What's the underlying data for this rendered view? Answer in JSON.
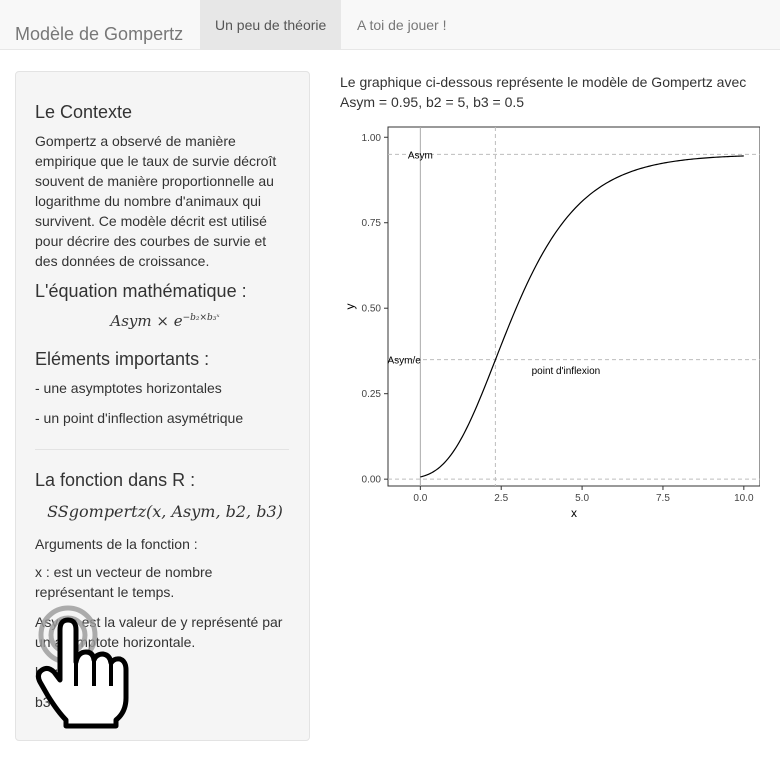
{
  "navbar": {
    "brand": "Modèle de Gompertz",
    "tabs": [
      {
        "label": "Un peu de théorie",
        "active": true
      },
      {
        "label": "A toi de jouer !",
        "active": false
      }
    ]
  },
  "sidebar": {
    "context_title": "Le Contexte",
    "context_lines": [
      "Gompertz a observé de manière",
      "empirique que le taux de survie décroît",
      "souvent de manière proportionnelle au",
      "logarithme du nombre d'animaux qui",
      "survivent. Ce modèle décrit est utilisé",
      "pour décrire des courbes de survie et",
      "des données de croissance."
    ],
    "equation_title": "L'équation mathématique :",
    "equation": {
      "base": "Asym × e",
      "exponent": "−b₂×b₃ˣ"
    },
    "important_title": "Eléments importants :",
    "important_items": [
      "- une asymptotes horizontales",
      "- un point d'inflection asymétrique"
    ],
    "r_title": "La fonction dans R :",
    "r_function": "SSgompertz(x, Asym, b2, b3)",
    "args_title": "Arguments de la fonction :",
    "args_x": [
      "x : est un vecteur de nombre",
      "représentant le temps."
    ],
    "args_asym": [
      "Asym : est la valeur de y représenté par",
      "un asymptote horizontale."
    ],
    "args_b2": "b2 :",
    "args_b3": "b3"
  },
  "main": {
    "title_lines": [
      "Le graphique ci-dessous représente le modèle de Gompertz avec",
      "Asym = 0.95, b2 = 5, b3 = 0.5"
    ]
  },
  "chart_data": {
    "type": "line",
    "function": "Asym * exp(-b2 * b3^x)",
    "params": {
      "Asym": 0.95,
      "b2": 5,
      "b3": 0.5
    },
    "x_range": [
      0,
      10
    ],
    "xlim": [
      -1,
      10.5
    ],
    "ylim": [
      -0.02,
      1.03
    ],
    "xlabel": "x",
    "ylabel": "y",
    "x_ticks": [
      0,
      2.5,
      5,
      7.5,
      10
    ],
    "x_tick_labels": [
      "0.0",
      "2.5",
      "5.0",
      "7.5",
      "10.0"
    ],
    "y_ticks": [
      0,
      0.25,
      0.5,
      0.75,
      1
    ],
    "y_tick_labels": [
      "0.00",
      "0.25",
      "0.50",
      "0.75",
      "1.00"
    ],
    "reference_lines": {
      "hlines": [
        0,
        0.95,
        0.3495
      ],
      "vlines": [
        2.32
      ],
      "vline_solid": 0
    },
    "annotations": [
      {
        "text": "Asym",
        "x": 0,
        "y": 0.95
      },
      {
        "text": "Asym/e",
        "x": -0.5,
        "y": 0.3495
      },
      {
        "text": "point d'inflexion",
        "x": 4.5,
        "y": 0.32
      }
    ],
    "line_color": "#000000",
    "ref_line_color": "#bdbdbd"
  }
}
